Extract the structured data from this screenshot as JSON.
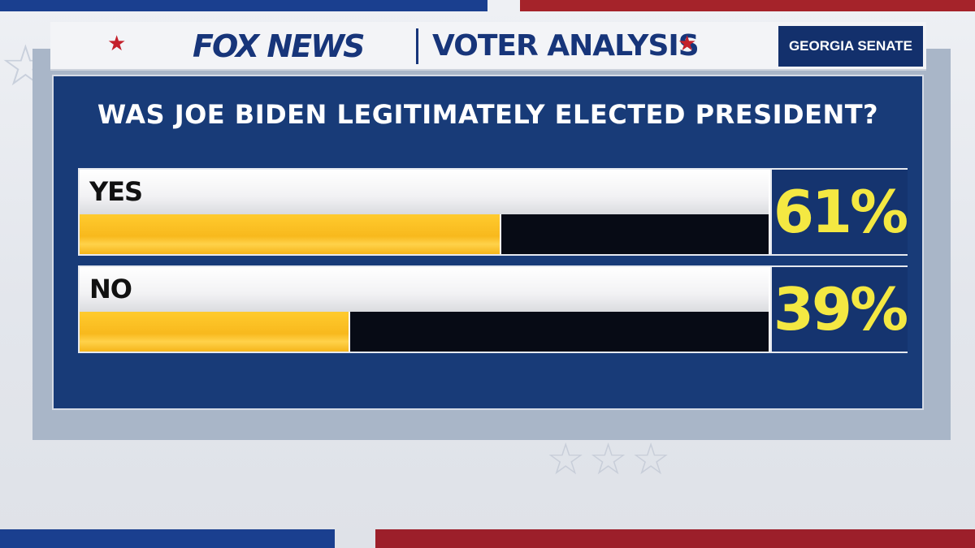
{
  "header": {
    "logo_text": "FOX NEWS",
    "title": "VOTER ANALYSIS",
    "badge": "GEORGIA SENATE",
    "star_glyph": "★"
  },
  "chart_data": {
    "type": "bar",
    "title": "WAS JOE BIDEN LEGITIMATELY ELECTED PRESIDENT?",
    "categories": [
      "YES",
      "NO"
    ],
    "values": [
      61,
      39
    ],
    "value_labels": [
      "61%",
      "39%"
    ],
    "ylim": [
      0,
      100
    ],
    "orientation": "horizontal"
  },
  "colors": {
    "bar_fill": "#f8b91d",
    "bar_track": "#070b15",
    "panel": "#183b78",
    "percent_text": "#f4e842",
    "brand_red": "#c4202b",
    "brand_blue": "#17357a"
  }
}
